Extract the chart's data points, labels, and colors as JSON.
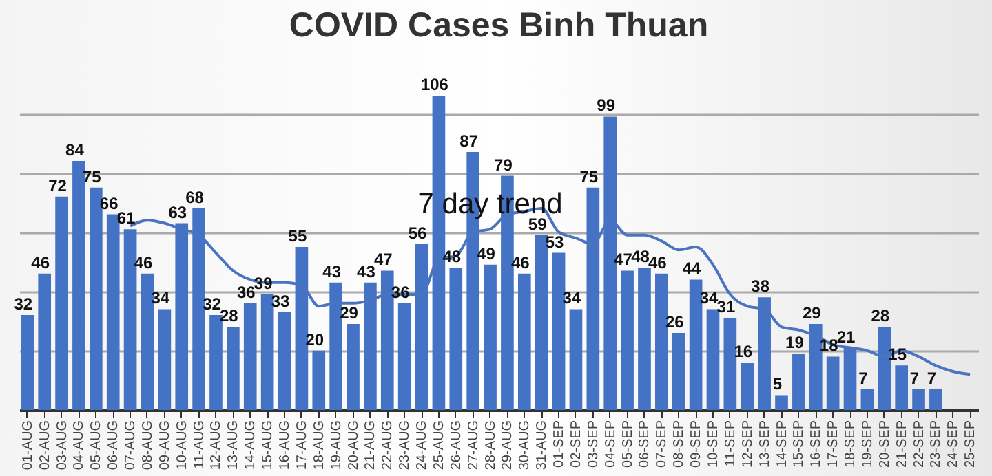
{
  "chart_data": {
    "type": "bar",
    "title": "COVID Cases Binh Thuan",
    "categories": [
      "01-AUG",
      "02-AUG",
      "03-AUG",
      "04-AUG",
      "05-AUG",
      "06-AUG",
      "07-AUG",
      "08-AUG",
      "09-AUG",
      "10-AUG",
      "11-AUG",
      "12-AUG",
      "13-AUG",
      "14-AUG",
      "15-AUG",
      "16-AUG",
      "17-AUG",
      "18-AUG",
      "19-AUG",
      "20-AUG",
      "21-AUG",
      "22-AUG",
      "23-AUG",
      "24-AUG",
      "25-AUG",
      "26-AUG",
      "27-AUG",
      "28-AUG",
      "29-AUG",
      "30-AUG",
      "31-AUG",
      "01-SEP",
      "02-SEP",
      "03-SEP",
      "04-SEP",
      "05-SEP",
      "06-SEP",
      "07-SEP",
      "08-SEP",
      "09-SEP",
      "10-SEP",
      "11-SEP",
      "12-SEP",
      "13-SEP",
      "14-SEP",
      "15-SEP",
      "16-SEP",
      "17-SEP",
      "18-SEP",
      "19-SEP",
      "20-SEP",
      "21-SEP",
      "22-SEP",
      "23-SEP",
      "24-SEP",
      "25-SEP"
    ],
    "series": [
      {
        "color": "#4472c4",
        "values": [
          32,
          46,
          72,
          84,
          75,
          66,
          61,
          46,
          34,
          63,
          68,
          32,
          28,
          36,
          39,
          33,
          55,
          20,
          43,
          29,
          43,
          47,
          36,
          56,
          106,
          48,
          87,
          49,
          79,
          46,
          59,
          53,
          34,
          75,
          99,
          47,
          48,
          46,
          26,
          44,
          34,
          31,
          16,
          38,
          5,
          19,
          29,
          18,
          21,
          7,
          28,
          15,
          7,
          7,
          null,
          null
        ],
        "value_labels": [
          "32",
          "46",
          "72",
          "84",
          "75",
          "66",
          "61",
          "46",
          "34",
          "63",
          "68",
          "32",
          "28",
          "36",
          "39",
          "33",
          "55",
          "20",
          "43",
          "29",
          "43",
          "47",
          "36",
          "56",
          "106",
          "48",
          "87",
          "49",
          "79",
          "46",
          "59",
          "53",
          "34",
          "75",
          "99",
          "47",
          "48",
          "46",
          "26",
          "44",
          "34",
          "31",
          "16",
          "38",
          "5",
          "19",
          "29",
          "18",
          "21",
          "7",
          "28",
          "15",
          "7",
          "7",
          null,
          null
        ]
      },
      {
        "type": "line",
        "name": "7 day trend",
        "color": "#4a74c0",
        "values": [
          null,
          null,
          null,
          null,
          null,
          null,
          62,
          64,
          63,
          61,
          59,
          53,
          47,
          44,
          43,
          43,
          42,
          35,
          36,
          36,
          37,
          39,
          39,
          39,
          51,
          52,
          60,
          61,
          66,
          67,
          68,
          60,
          58,
          56,
          64,
          59,
          59,
          57,
          54,
          55,
          49,
          39,
          35,
          34,
          28,
          27,
          25,
          22,
          21,
          20,
          18,
          20,
          18,
          15,
          13,
          12
        ]
      }
    ],
    "yticks": [
      {
        "value": 0,
        "label": null
      },
      {
        "value": 20,
        "label": null
      },
      {
        "value": 40,
        "label": null
      },
      {
        "value": 60,
        "label": null
      },
      {
        "value": 80,
        "label": null
      },
      {
        "value": 100,
        "label": null
      }
    ],
    "tick_labels": "x",
    "grid": "y"
  }
}
